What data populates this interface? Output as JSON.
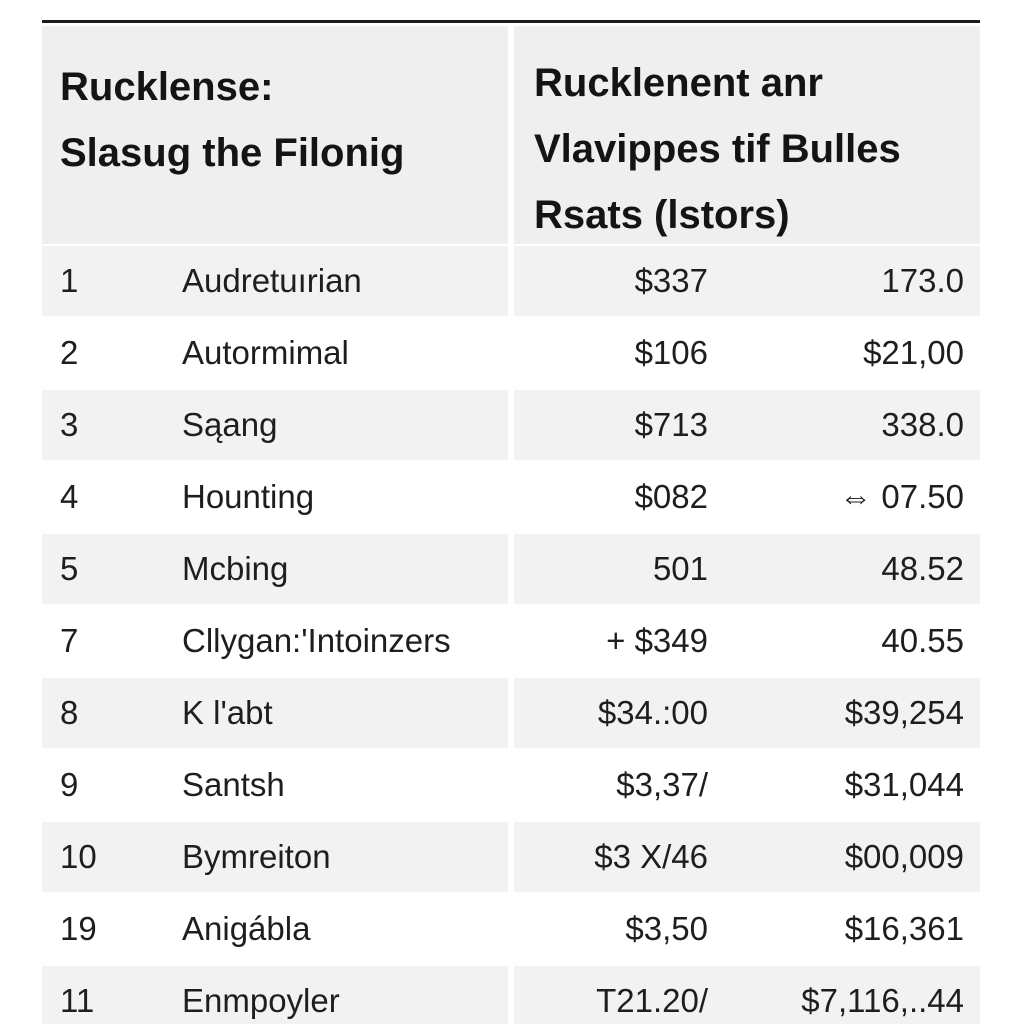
{
  "header": {
    "left_lines": [
      "Rucklense:",
      "Slasug the Filonig"
    ],
    "right_lines": [
      "Rucklenent anr",
      "Vlavippes tif Bulles",
      "Rsats (lstors)"
    ]
  },
  "rows": [
    {
      "num": "1",
      "name": "Audretuırian",
      "val1": "$337",
      "val2": "173.0"
    },
    {
      "num": "2",
      "name": "Autormimal",
      "val1": "$106",
      "val2": "$21,00"
    },
    {
      "num": "3",
      "name": "Sąang",
      "val1": "$713",
      "val2": "338.0"
    },
    {
      "num": "4",
      "name": "Hounting",
      "val1": "$082",
      "val2": "⇔ 07.50"
    },
    {
      "num": "5",
      "name": "Mcbing",
      "val1": "501",
      "val2": "48.52"
    },
    {
      "num": "7",
      "name": "Cllygan:'Intoinzers",
      "val1": "+ $349",
      "val2": "40.55"
    },
    {
      "num": "8",
      "name": "K l'abt",
      "val1": "$34.:00",
      "val2": "$39,254"
    },
    {
      "num": "9",
      "name": "Santsh",
      "val1": "$3,37/",
      "val2": "$31,044"
    },
    {
      "num": "10",
      "name": "Bymreiton",
      "val1": "$3 X/46",
      "val2": "$00,009"
    },
    {
      "num": "19",
      "name": "Anigábla",
      "val1": "$3,50",
      "val2": "$16,361"
    },
    {
      "num": "11",
      "name": "Enmpoyler",
      "val1": "T21.20/",
      "val2": "$7,116,..44"
    }
  ]
}
